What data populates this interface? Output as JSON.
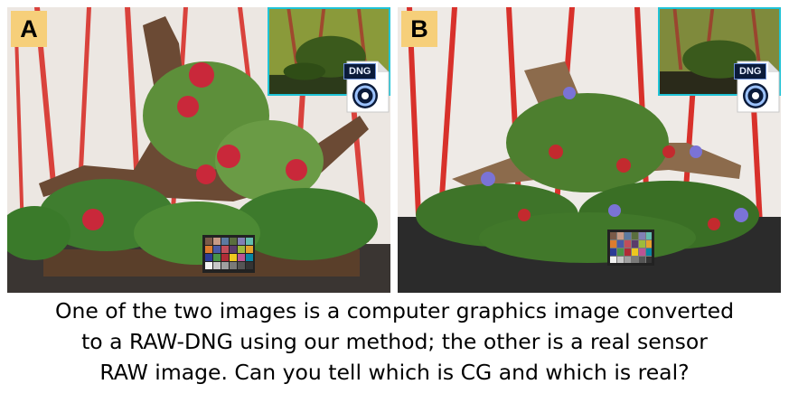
{
  "panels": [
    {
      "label": "A",
      "badge": "DNG"
    },
    {
      "label": "B",
      "badge": "DNG"
    }
  ],
  "caption": {
    "line1": "One of the two images is a computer graphics image converted",
    "line2": "to a RAW-DNG using our method; the other is a real sensor",
    "line3": "RAW image. Can you tell which is CG and which is real?"
  },
  "colors": {
    "label_bg": "#f6cf7a",
    "inset_border": "#1fc3d6",
    "wall_stripe": "#d8312b"
  }
}
